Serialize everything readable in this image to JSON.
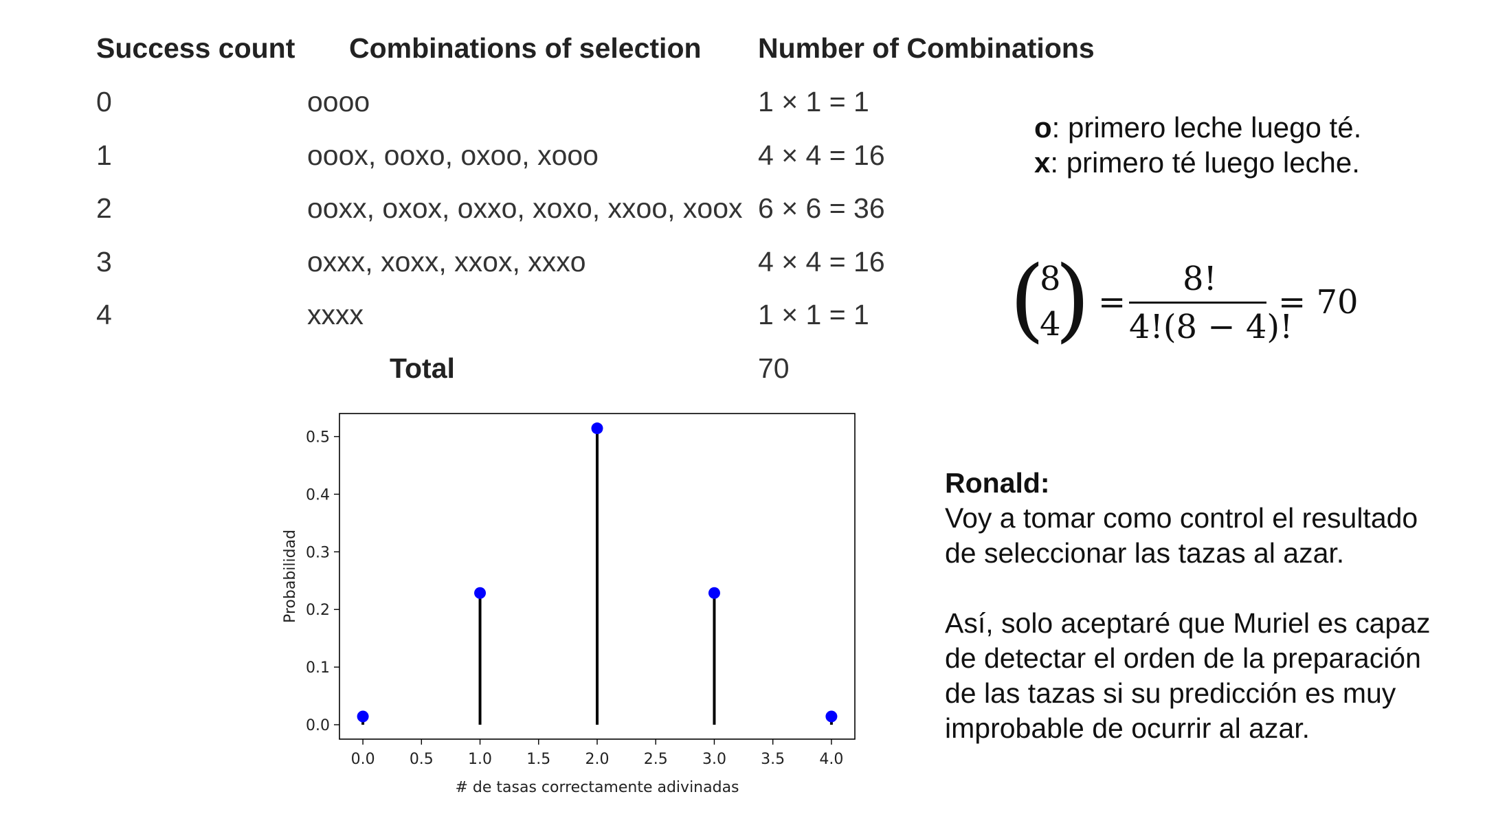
{
  "table": {
    "headers": [
      "Success count",
      "Combinations of selection",
      "Number of Combinations"
    ],
    "rows": [
      {
        "count": "0",
        "combos": "oooo",
        "number": "1 × 1 = 1"
      },
      {
        "count": "1",
        "combos": "ooox, ooxo, oxoo, xooo",
        "number": "4 × 4 = 16"
      },
      {
        "count": "2",
        "combos": "ooxx, oxox, oxxo, xoxo, xxoo, xoox",
        "number": "6 × 6 = 36"
      },
      {
        "count": "3",
        "combos": "oxxx, xoxx, xxox, xxxo",
        "number": "4 × 4 = 16"
      },
      {
        "count": "4",
        "combos": "xxxx",
        "number": "1 × 1 = 1"
      }
    ],
    "total_label": "Total",
    "total_value": "70"
  },
  "legend": {
    "o_symbol": "o",
    "o_text": ": primero leche luego té.",
    "x_symbol": "x",
    "x_text": ": primero té luego leche."
  },
  "formula": {
    "n": "8",
    "k": "4",
    "equals": "=",
    "numerator": "8!",
    "denominator": "4!(8 − 4)!",
    "result": "= 70"
  },
  "chart_data": {
    "type": "stem",
    "x": [
      0,
      1,
      2,
      3,
      4
    ],
    "y": [
      0.0143,
      0.2286,
      0.5143,
      0.2286,
      0.0143
    ],
    "xlabel": "# de tasas correctamente adivinadas",
    "ylabel": "Probabilidad",
    "xlim": [
      -0.2,
      4.2
    ],
    "ylim": [
      -0.025,
      0.54
    ],
    "xticks": [
      "0.0",
      "0.5",
      "1.0",
      "1.5",
      "2.0",
      "2.5",
      "3.0",
      "3.5",
      "4.0"
    ],
    "yticks": [
      "0.0",
      "0.1",
      "0.2",
      "0.3",
      "0.4",
      "0.5"
    ],
    "grid": false,
    "marker_color": "#0000ff",
    "stem_color": "#000000"
  },
  "note": {
    "title": "Ronald:",
    "p1": [
      "Voy a tomar como control el resultado",
      "de seleccionar las tazas al azar."
    ],
    "p2": [
      "Así, solo aceptaré que Muriel es capaz",
      "de detectar el orden de la preparación",
      "de las tazas si su predicción es muy",
      "improbable de ocurrir al azar."
    ]
  }
}
